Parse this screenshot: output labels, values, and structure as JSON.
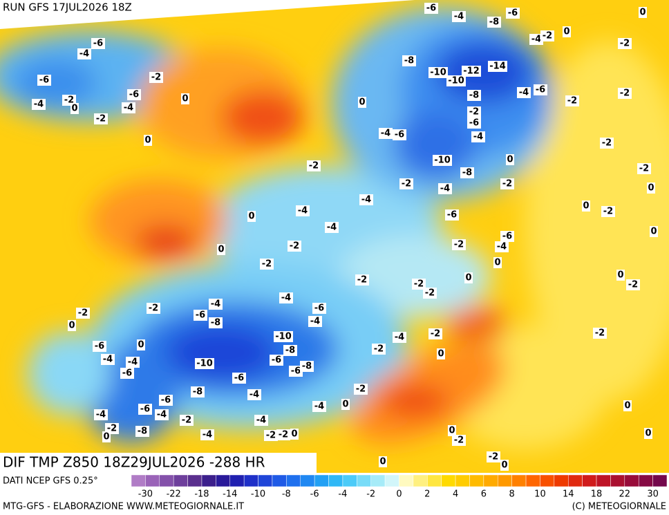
{
  "header": {
    "run": "RUN GFS 17JUL2026 18Z"
  },
  "map": {
    "title": "DIF TMP Z850 18Z29JUL2026 -288 HR",
    "contour_labels": [
      "-6",
      "-4",
      "-6",
      "0",
      "-8",
      "-4",
      "-2",
      "0",
      "-2",
      "-8",
      "-10",
      "-12",
      "-14",
      "-10",
      "-8",
      "-4",
      "-6",
      "-2",
      "-2",
      "0",
      "-2",
      "-6",
      "-4",
      "-6",
      "-4",
      "-2",
      "-10",
      "0",
      "-8",
      "-2",
      "-2",
      "-4",
      "-2",
      "0",
      "-4",
      "0",
      "-2",
      "-4",
      "-6",
      "0",
      "-4",
      "-6",
      "0",
      "-2",
      "-2",
      "-4",
      "0",
      "-2",
      "0",
      "-2",
      "-2",
      "0",
      "0",
      "-2",
      "-2",
      "-4",
      "-4",
      "-2",
      "-6",
      "-6",
      "-8",
      "-4",
      "-2",
      "0",
      "-10",
      "-4",
      "-2",
      "-2",
      "-8",
      "-2",
      "0",
      "-6",
      "-4",
      "-4",
      "-6",
      "-10",
      "-6",
      "-6",
      "-8",
      "0",
      "-6",
      "-8",
      "-4",
      "-2",
      "-6",
      "0",
      "-4",
      "-6",
      "-4",
      "-2",
      "-4",
      "0",
      "-2",
      "0",
      "-8",
      "-4",
      "-4",
      "-2",
      "-2",
      "0",
      "0",
      "-2",
      "0",
      "-2",
      "0",
      "0",
      "-6",
      "-4",
      "-6",
      "-2",
      "-6",
      "0",
      "-4",
      "-2",
      "0",
      "-4",
      "-2",
      "0",
      "-2"
    ]
  },
  "legend": {
    "source": "DATI NCEP GFS 0.25°",
    "colors": [
      "#b07cc6",
      "#9a63b8",
      "#8451aa",
      "#6e3f9c",
      "#5a2f8e",
      "#3c1f8c",
      "#2a1a9a",
      "#2020b0",
      "#1f30c8",
      "#1f45d8",
      "#1f5ae6",
      "#1f70ee",
      "#2088f2",
      "#22a0f4",
      "#30b8f6",
      "#4ccbf8",
      "#78dcf8",
      "#a6ebf8",
      "#d2f6fa",
      "#fffac0",
      "#fff080",
      "#ffe640",
      "#ffda00",
      "#ffcc00",
      "#ffbb00",
      "#ffaa00",
      "#ff9900",
      "#ff8000",
      "#ff6600",
      "#f85000",
      "#ee3a00",
      "#e02a10",
      "#d01c1c",
      "#be1426",
      "#aa1030",
      "#980c3a",
      "#860a44",
      "#74084c"
    ],
    "ticks": [
      "-30",
      "-22",
      "-18",
      "-14",
      "-10",
      "-8",
      "-6",
      "-4",
      "-2",
      "0",
      "2",
      "4",
      "6",
      "8",
      "10",
      "14",
      "18",
      "22",
      "30"
    ]
  },
  "footer": {
    "left": "MTG-GFS - ELABORAZIONE WWW.METEOGIORNALE.IT",
    "right": "(C) METEOGIORNALE"
  }
}
